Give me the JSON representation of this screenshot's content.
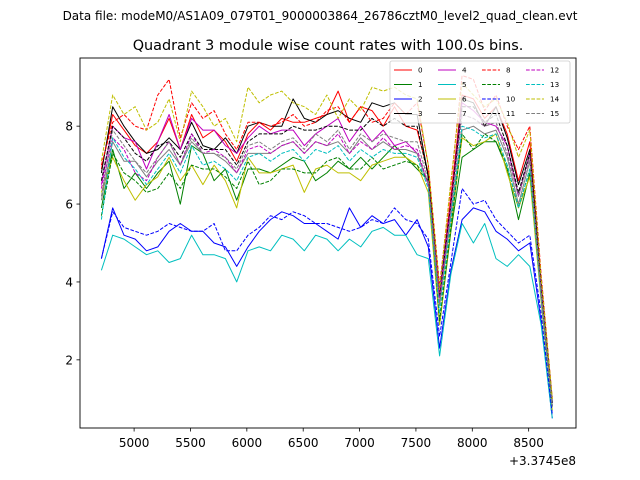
{
  "chart_data": {
    "type": "line",
    "suptitle": "Data file: modeM0/AS1A09_079T01_9000003864_26786cztM0_level2_quad_clean.evt",
    "title": "Quadrant 3 module wise count rates with 100.0s bins.",
    "xlabel": "",
    "ylabel": "",
    "x_offset_label": "+3.3745e8",
    "x": [
      4710,
      4810,
      4910,
      5010,
      5110,
      5210,
      5310,
      5410,
      5510,
      5610,
      5710,
      5810,
      5910,
      6010,
      6110,
      6210,
      6310,
      6410,
      6510,
      6610,
      6710,
      6810,
      6910,
      7010,
      7110,
      7210,
      7310,
      7410,
      7510,
      7610,
      7710,
      7810,
      7910,
      8010,
      8110,
      8210,
      8310,
      8410,
      8510,
      8610,
      8710
    ],
    "xlim": [
      4520,
      8920
    ],
    "ylim": [
      0.25,
      9.75
    ],
    "xticks": [
      5000,
      5500,
      6000,
      6500,
      7000,
      7500,
      8000,
      8500
    ],
    "yticks": [
      2,
      4,
      6,
      8
    ],
    "grid": false,
    "legend_position": "top-right",
    "series": [
      {
        "name": "0",
        "color": "#ff0000",
        "dash": "solid",
        "values": [
          6.9,
          8.3,
          7.9,
          7.5,
          7.3,
          7.6,
          8.2,
          7.4,
          8.3,
          7.7,
          7.9,
          7.6,
          7.1,
          7.8,
          8.1,
          7.9,
          8.2,
          8.1,
          8.1,
          8.2,
          8.3,
          8.9,
          8.1,
          8.5,
          8.4,
          8.0,
          8.5,
          8.0,
          7.9,
          6.8,
          3.7,
          6.2,
          8.8,
          8.7,
          8.2,
          8.5,
          7.8,
          6.6,
          7.6,
          4.0,
          0.9
        ]
      },
      {
        "name": "1",
        "color": "#008000",
        "dash": "solid",
        "values": [
          5.9,
          7.4,
          6.4,
          6.8,
          6.4,
          6.8,
          7.1,
          6.0,
          7.5,
          7.3,
          6.6,
          6.9,
          6.1,
          6.9,
          6.9,
          6.8,
          7.0,
          7.2,
          7.1,
          6.6,
          6.8,
          7.1,
          6.9,
          7.2,
          6.9,
          7.2,
          7.5,
          7.2,
          6.9,
          6.6,
          2.9,
          5.3,
          7.2,
          7.4,
          7.6,
          7.6,
          6.9,
          5.6,
          6.8,
          3.7,
          0.8
        ]
      },
      {
        "name": "2",
        "color": "#0000ff",
        "dash": "solid",
        "values": [
          4.6,
          5.9,
          5.2,
          5.1,
          4.8,
          4.9,
          5.3,
          5.5,
          5.3,
          5.3,
          5.0,
          4.9,
          4.4,
          4.9,
          5.3,
          5.6,
          5.8,
          5.7,
          5.5,
          5.5,
          5.3,
          5.1,
          5.9,
          5.4,
          5.7,
          5.5,
          5.6,
          5.2,
          5.6,
          4.9,
          2.3,
          4.3,
          5.6,
          5.9,
          5.8,
          5.3,
          5.1,
          4.8,
          5.0,
          3.0,
          0.5
        ]
      },
      {
        "name": "3",
        "color": "#000000",
        "dash": "solid",
        "values": [
          6.8,
          8.5,
          8.0,
          7.6,
          7.3,
          7.4,
          7.7,
          7.4,
          8.1,
          7.5,
          7.4,
          7.7,
          7.3,
          8.0,
          8.1,
          8.0,
          8.0,
          8.7,
          8.2,
          8.1,
          8.3,
          8.4,
          8.2,
          8.1,
          8.6,
          8.5,
          8.6,
          8.3,
          8.3,
          6.7,
          3.8,
          6.0,
          8.7,
          8.6,
          8.0,
          8.5,
          7.7,
          6.5,
          7.4,
          4.0,
          0.9
        ]
      },
      {
        "name": "4",
        "color": "#bf00bf",
        "dash": "solid",
        "values": [
          6.5,
          8.0,
          7.7,
          7.6,
          6.9,
          7.6,
          8.3,
          7.4,
          8.2,
          7.9,
          7.9,
          7.5,
          7.3,
          7.7,
          8.0,
          7.8,
          7.9,
          7.9,
          7.5,
          7.8,
          8.0,
          8.2,
          7.6,
          8.0,
          7.6,
          7.9,
          7.5,
          7.6,
          7.3,
          6.5,
          3.7,
          6.0,
          8.6,
          8.4,
          8.1,
          8.0,
          7.5,
          6.2,
          7.3,
          3.7,
          0.8
        ]
      },
      {
        "name": "5",
        "color": "#00bfbf",
        "dash": "solid",
        "values": [
          4.3,
          5.2,
          5.1,
          4.9,
          4.7,
          4.8,
          4.5,
          4.6,
          5.2,
          4.7,
          4.7,
          4.6,
          4.0,
          4.8,
          4.9,
          4.8,
          5.2,
          5.1,
          4.8,
          5.2,
          5.1,
          4.8,
          5.1,
          4.9,
          5.3,
          5.4,
          5.2,
          5.2,
          4.7,
          4.6,
          2.1,
          4.2,
          5.5,
          5.0,
          5.5,
          4.6,
          4.4,
          4.7,
          4.4,
          2.9,
          0.5
        ]
      },
      {
        "name": "6",
        "color": "#bfbf00",
        "dash": "solid",
        "values": [
          6.3,
          7.2,
          6.6,
          6.1,
          6.5,
          6.7,
          7.2,
          6.6,
          7.0,
          6.5,
          7.0,
          6.6,
          5.9,
          7.2,
          6.8,
          6.8,
          6.9,
          7.0,
          6.3,
          6.9,
          7.0,
          6.8,
          6.8,
          6.6,
          7.0,
          7.1,
          7.2,
          7.2,
          7.0,
          6.3,
          2.9,
          5.4,
          7.7,
          7.5,
          7.6,
          7.8,
          6.8,
          5.9,
          6.7,
          3.5,
          0.7
        ]
      },
      {
        "name": "7",
        "color": "#7f7f7f",
        "dash": "solid",
        "values": [
          6.1,
          7.6,
          7.1,
          7.1,
          6.7,
          7.1,
          7.4,
          7.0,
          7.6,
          7.3,
          7.3,
          7.1,
          6.8,
          7.3,
          7.3,
          7.3,
          7.5,
          7.6,
          7.3,
          7.6,
          7.5,
          7.6,
          7.3,
          7.7,
          7.4,
          7.6,
          7.4,
          7.4,
          7.3,
          6.5,
          3.4,
          5.7,
          7.9,
          8.0,
          7.8,
          7.9,
          7.2,
          6.0,
          7.1,
          3.6,
          0.8
        ]
      },
      {
        "name": "8",
        "color": "#ff0000",
        "dash": "dashed",
        "values": [
          7.0,
          8.1,
          8.3,
          8.0,
          7.9,
          8.8,
          9.2,
          7.7,
          8.6,
          8.2,
          8.4,
          7.8,
          7.4,
          8.1,
          8.1,
          8.0,
          8.1,
          8.3,
          8.0,
          8.1,
          8.4,
          8.5,
          8.1,
          8.5,
          8.1,
          8.2,
          8.6,
          8.3,
          8.6,
          7.0,
          3.9,
          6.5,
          9.3,
          9.2,
          8.4,
          8.8,
          8.0,
          7.4,
          8.0,
          4.2,
          1.0
        ]
      },
      {
        "name": "9",
        "color": "#008000",
        "dash": "dashed",
        "values": [
          5.7,
          7.3,
          6.8,
          6.6,
          6.3,
          6.4,
          6.8,
          6.4,
          7.0,
          6.9,
          6.9,
          6.7,
          6.4,
          7.1,
          6.5,
          6.6,
          6.9,
          6.9,
          6.8,
          6.8,
          7.1,
          7.2,
          6.9,
          6.9,
          7.2,
          6.9,
          7.0,
          7.1,
          7.0,
          6.6,
          3.0,
          5.4,
          7.8,
          7.4,
          7.8,
          7.6,
          7.0,
          5.9,
          6.9,
          3.7,
          0.8
        ]
      },
      {
        "name": "10",
        "color": "#0000ff",
        "dash": "dashed",
        "values": [
          4.6,
          5.8,
          5.4,
          5.3,
          5.2,
          5.3,
          5.5,
          5.4,
          5.3,
          5.3,
          5.5,
          4.8,
          4.8,
          5.2,
          5.4,
          5.7,
          5.6,
          5.8,
          5.7,
          5.5,
          5.5,
          5.4,
          5.3,
          5.4,
          5.6,
          5.5,
          5.9,
          5.6,
          5.5,
          5.1,
          2.6,
          4.5,
          6.4,
          6.0,
          6.1,
          5.6,
          5.3,
          5.0,
          5.2,
          3.2,
          0.6
        ]
      },
      {
        "name": "11",
        "color": "#000000",
        "dash": "dashed",
        "values": [
          6.6,
          8.0,
          7.7,
          7.3,
          7.1,
          7.5,
          7.6,
          7.2,
          7.8,
          7.4,
          7.4,
          7.4,
          7.0,
          7.6,
          7.8,
          7.8,
          7.8,
          8.0,
          7.9,
          7.9,
          8.0,
          8.0,
          7.9,
          7.9,
          8.2,
          8.0,
          8.2,
          8.0,
          8.0,
          6.7,
          3.6,
          6.0,
          8.5,
          8.5,
          8.1,
          8.3,
          7.5,
          6.3,
          7.3,
          3.9,
          0.9
        ]
      },
      {
        "name": "12",
        "color": "#bf00bf",
        "dash": "dashed",
        "values": [
          6.4,
          7.7,
          7.4,
          6.8,
          6.6,
          7.2,
          7.6,
          7.0,
          7.8,
          7.3,
          7.4,
          7.2,
          6.8,
          7.4,
          7.5,
          7.3,
          7.5,
          7.6,
          7.3,
          7.6,
          7.5,
          7.8,
          7.3,
          7.6,
          7.4,
          7.7,
          7.4,
          7.5,
          7.4,
          6.5,
          3.5,
          5.9,
          8.3,
          8.2,
          8.0,
          8.1,
          7.3,
          6.2,
          7.2,
          3.8,
          0.8
        ]
      },
      {
        "name": "13",
        "color": "#00bfbf",
        "dash": "dashed",
        "values": [
          5.6,
          7.7,
          7.2,
          6.9,
          6.5,
          6.9,
          7.3,
          6.8,
          7.5,
          7.0,
          7.1,
          6.9,
          6.6,
          7.2,
          7.3,
          7.1,
          7.3,
          7.4,
          7.1,
          7.4,
          7.3,
          7.5,
          7.1,
          7.4,
          7.2,
          7.4,
          7.3,
          7.3,
          7.2,
          6.4,
          3.2,
          5.6,
          8.0,
          7.9,
          7.7,
          7.8,
          7.0,
          5.9,
          6.9,
          3.6,
          0.8
        ]
      },
      {
        "name": "14",
        "color": "#bfbf00",
        "dash": "dashed",
        "values": [
          7.1,
          8.8,
          8.3,
          8.5,
          7.9,
          8.1,
          8.7,
          7.6,
          8.9,
          8.5,
          8.0,
          8.2,
          7.6,
          9.0,
          8.6,
          8.8,
          8.9,
          8.6,
          8.5,
          8.3,
          8.8,
          8.2,
          8.7,
          8.4,
          9.0,
          8.9,
          9.0,
          8.8,
          8.7,
          7.0,
          3.8,
          6.6,
          9.1,
          8.8,
          8.5,
          8.7,
          8.1,
          7.2,
          7.9,
          4.1,
          1.0
        ]
      },
      {
        "name": "15",
        "color": "#7f7f7f",
        "dash": "dashed",
        "values": [
          6.2,
          7.9,
          7.5,
          7.1,
          6.8,
          7.2,
          7.6,
          7.0,
          7.7,
          7.3,
          7.3,
          7.2,
          6.9,
          7.5,
          7.6,
          7.4,
          7.6,
          7.7,
          7.4,
          7.8,
          7.6,
          7.9,
          7.4,
          7.8,
          7.6,
          7.8,
          7.7,
          7.6,
          7.6,
          6.6,
          3.4,
          5.8,
          8.3,
          8.2,
          8.0,
          8.1,
          7.3,
          6.2,
          7.2,
          3.7,
          0.8
        ]
      }
    ]
  }
}
